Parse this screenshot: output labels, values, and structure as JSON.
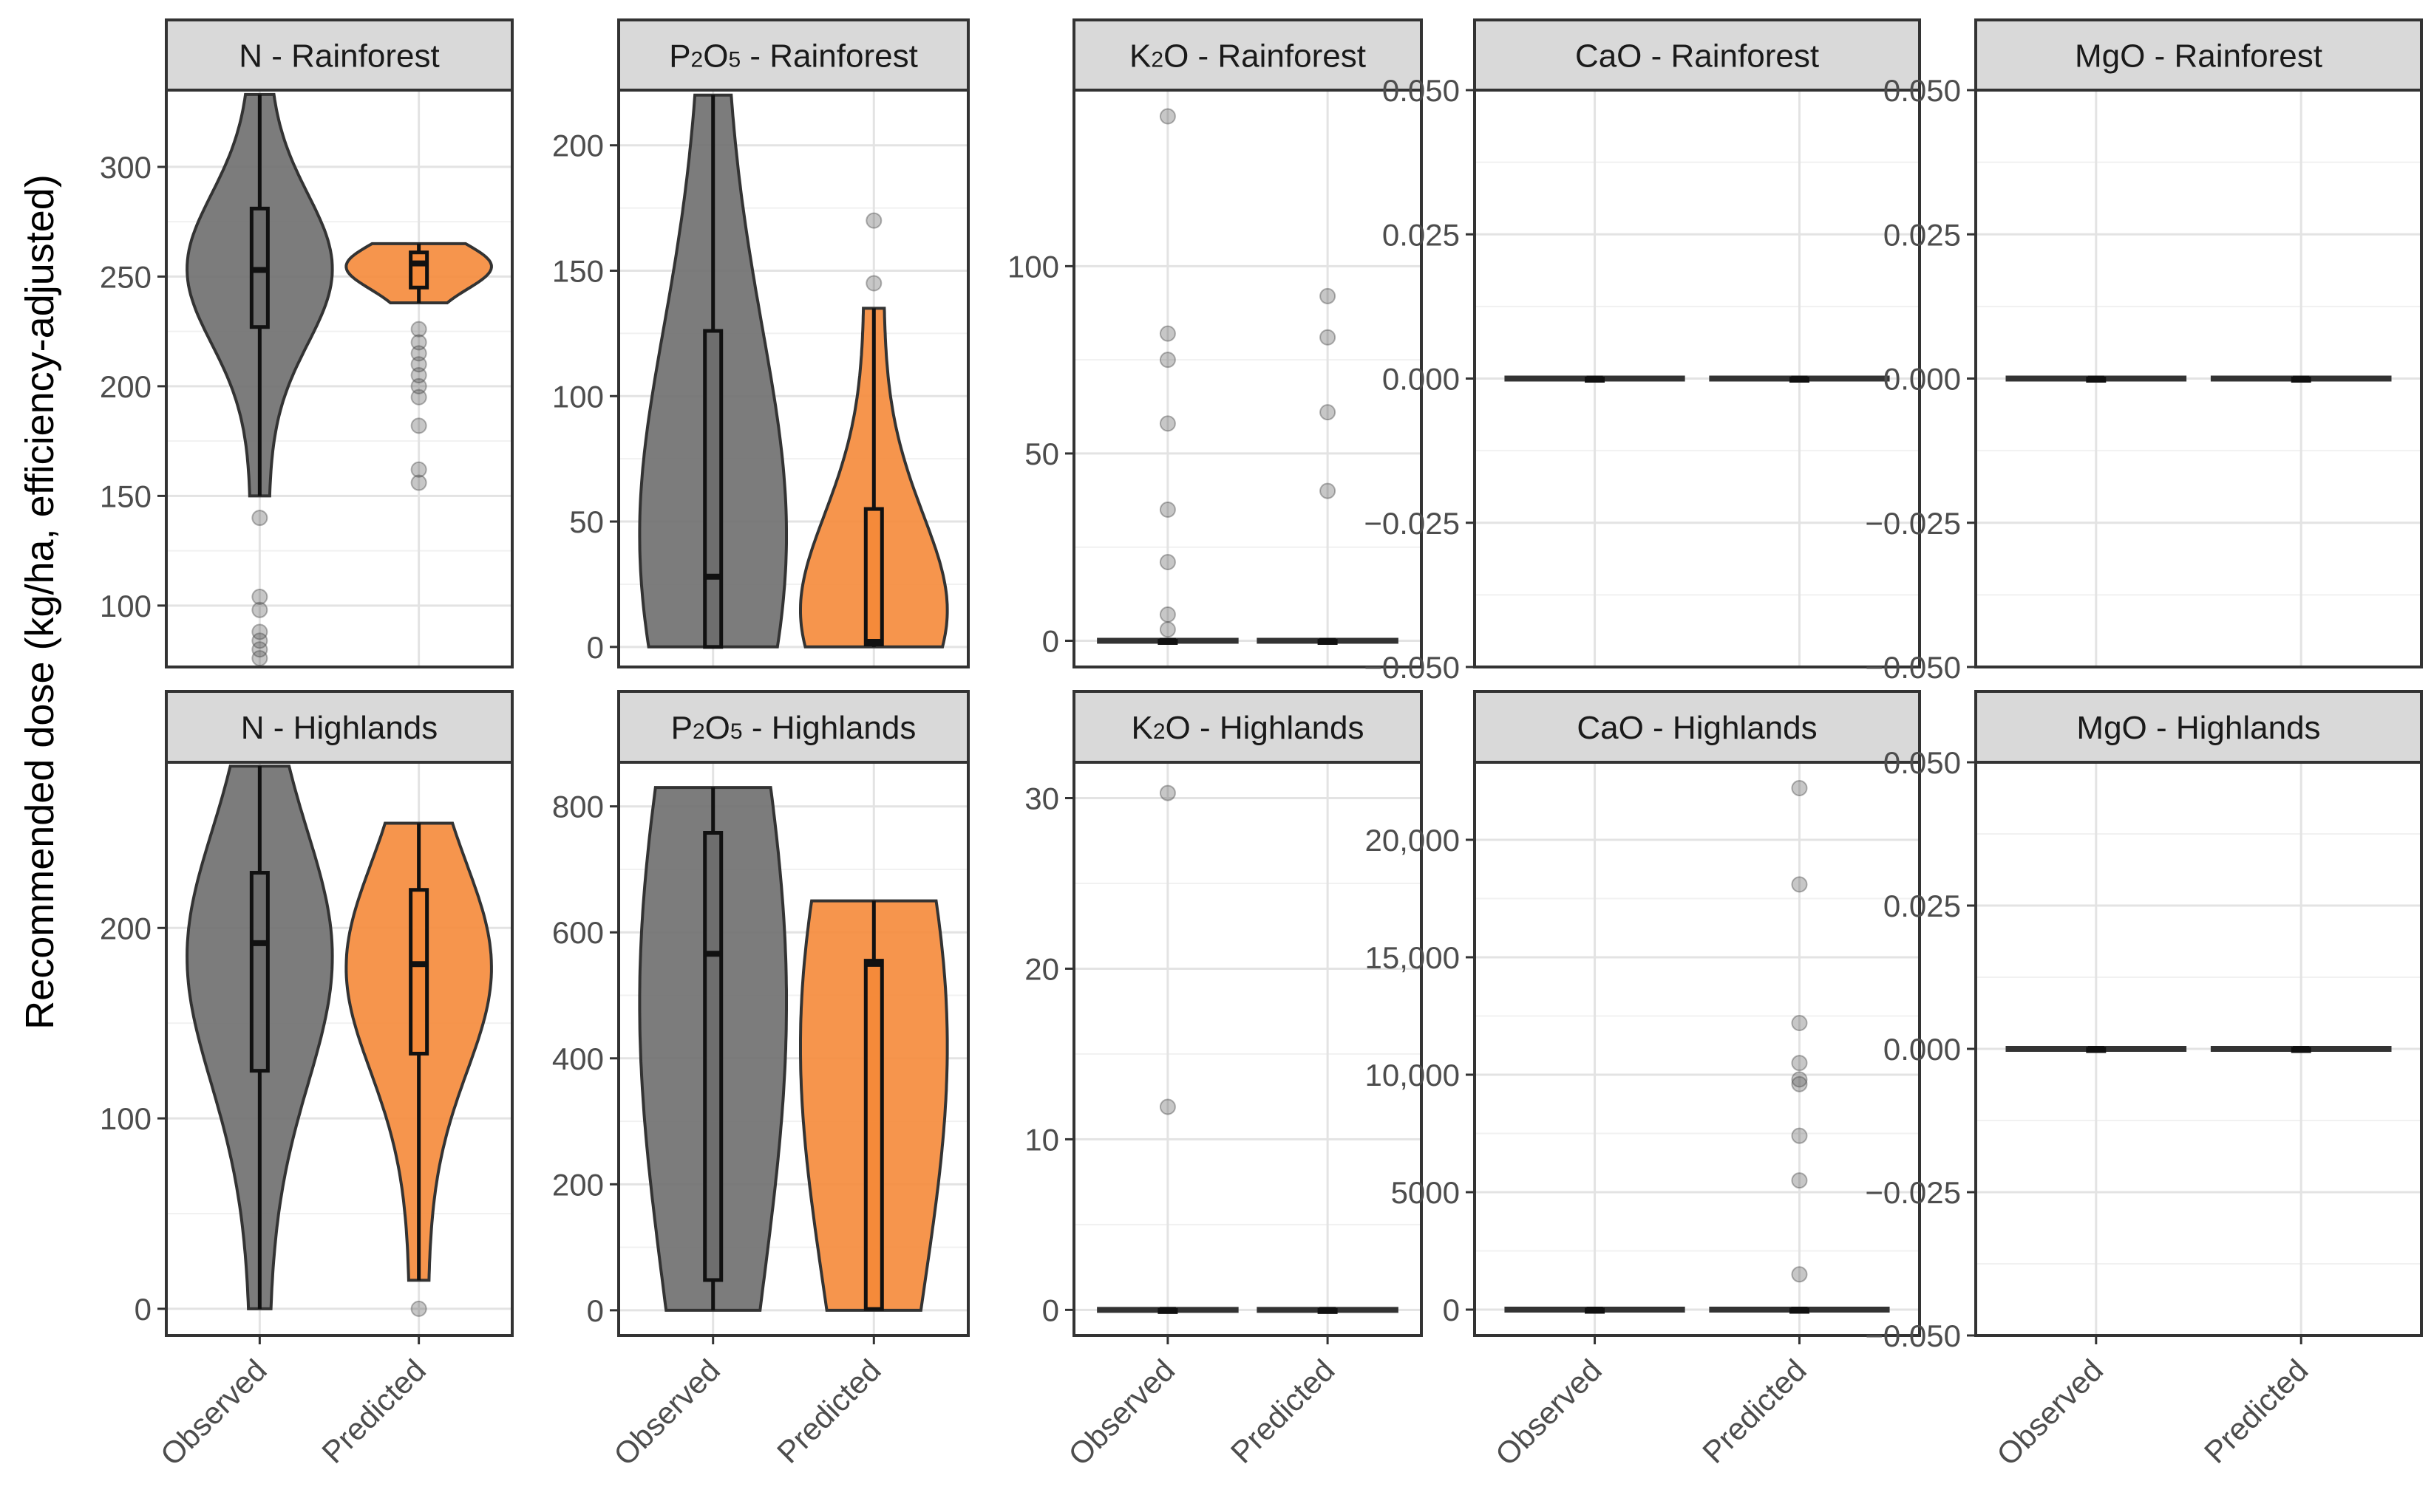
{
  "figure": {
    "ylabel": "Recommended dose (kg/ha, efficiency-adjusted)",
    "colors": {
      "observed": "#6e6e6e",
      "predicted": "#f58a3a"
    }
  },
  "chart_data": [
    {
      "type": "violin",
      "panel": "N - Rainforest",
      "strip": {
        "main": "N - Rainforest"
      },
      "categories": [
        "Observed",
        "Predicted"
      ],
      "ylim": [
        72,
        335
      ],
      "yticks": [
        100,
        150,
        200,
        250,
        300
      ],
      "series": [
        {
          "q1": 227,
          "median": 253,
          "q3": 281,
          "whisker_low": 150,
          "whisker_high": 333,
          "outliers": [
            140,
            104,
            98,
            88,
            84,
            80,
            76
          ]
        },
        {
          "q1": 245,
          "median": 256,
          "q3": 261,
          "whisker_low": 238,
          "whisker_high": 265,
          "outliers": [
            226,
            220,
            215,
            210,
            205,
            200,
            195,
            182,
            162,
            156
          ]
        }
      ]
    },
    {
      "type": "violin",
      "panel": "P2O5 - Rainforest",
      "strip": {
        "a": "P",
        "sub1": "2",
        "b": "O",
        "sub2": "5",
        "c": " - Rainforest"
      },
      "categories": [
        "Observed",
        "Predicted"
      ],
      "ylim": [
        -8,
        222
      ],
      "yticks": [
        0,
        50,
        100,
        150,
        200
      ],
      "series": [
        {
          "q1": 0,
          "median": 28,
          "q3": 126,
          "whisker_low": 0,
          "whisker_high": 220,
          "outliers": []
        },
        {
          "q1": 1,
          "median": 2,
          "q3": 55,
          "whisker_low": 0,
          "whisker_high": 135,
          "outliers": [
            170,
            145
          ]
        }
      ]
    },
    {
      "type": "violin",
      "panel": "K2O - Rainforest",
      "strip": {
        "a": "K",
        "sub1": "2",
        "b": "O - Rainforest"
      },
      "categories": [
        "Observed",
        "Predicted"
      ],
      "ylim": [
        -7,
        147
      ],
      "yticks": [
        0,
        50,
        100
      ],
      "series": [
        {
          "q1": 0,
          "median": 0,
          "q3": 0,
          "whisker_low": 0,
          "whisker_high": 0,
          "outliers": [
            140,
            82,
            75,
            58,
            35,
            21,
            7,
            3
          ]
        },
        {
          "q1": 0,
          "median": 0,
          "q3": 0,
          "whisker_low": 0,
          "whisker_high": 0,
          "outliers": [
            92,
            81,
            61,
            40
          ]
        }
      ]
    },
    {
      "type": "violin",
      "panel": "CaO - Rainforest",
      "strip": {
        "main": "CaO - Rainforest"
      },
      "categories": [
        "Observed",
        "Predicted"
      ],
      "ylim": [
        -0.05,
        0.05
      ],
      "yticks": [
        -0.05,
        -0.025,
        0,
        0.025,
        0.05
      ],
      "yticklabels": [
        "−0.050",
        "−0.025",
        "0.000",
        "0.025",
        "0.050"
      ],
      "series": [
        {
          "q1": 0,
          "median": 0,
          "q3": 0,
          "whisker_low": 0,
          "whisker_high": 0,
          "outliers": []
        },
        {
          "q1": 0,
          "median": 0,
          "q3": 0,
          "whisker_low": 0,
          "whisker_high": 0,
          "outliers": []
        }
      ]
    },
    {
      "type": "violin",
      "panel": "MgO - Rainforest",
      "strip": {
        "main": "MgO - Rainforest"
      },
      "categories": [
        "Observed",
        "Predicted"
      ],
      "ylim": [
        -0.05,
        0.05
      ],
      "yticks": [
        -0.05,
        -0.025,
        0,
        0.025,
        0.05
      ],
      "yticklabels": [
        "−0.050",
        "−0.025",
        "0.000",
        "0.025",
        "0.050"
      ],
      "series": [
        {
          "q1": 0,
          "median": 0,
          "q3": 0,
          "whisker_low": 0,
          "whisker_high": 0,
          "outliers": []
        },
        {
          "q1": 0,
          "median": 0,
          "q3": 0,
          "whisker_low": 0,
          "whisker_high": 0,
          "outliers": []
        }
      ]
    },
    {
      "type": "violin",
      "panel": "N - Highlands",
      "strip": {
        "main": "N - Highlands"
      },
      "categories": [
        "Observed",
        "Predicted"
      ],
      "ylim": [
        -14,
        287
      ],
      "yticks": [
        0,
        100,
        200
      ],
      "series": [
        {
          "q1": 125,
          "median": 192,
          "q3": 229,
          "whisker_low": 0,
          "whisker_high": 285,
          "outliers": []
        },
        {
          "q1": 134,
          "median": 181,
          "q3": 220,
          "whisker_low": 15,
          "whisker_high": 255,
          "outliers": [
            0
          ]
        }
      ]
    },
    {
      "type": "violin",
      "panel": "P2O5 - Highlands",
      "strip": {
        "a": "P",
        "sub1": "2",
        "b": "O",
        "sub2": "5",
        "c": " -  Highlands"
      },
      "categories": [
        "Observed",
        "Predicted"
      ],
      "ylim": [
        -40,
        870
      ],
      "yticks": [
        0,
        200,
        400,
        600,
        800
      ],
      "series": [
        {
          "q1": 48,
          "median": 566,
          "q3": 758,
          "whisker_low": 0,
          "whisker_high": 830,
          "outliers": []
        },
        {
          "q1": 2,
          "median": 550,
          "q3": 555,
          "whisker_low": 0,
          "whisker_high": 650,
          "outliers": []
        }
      ]
    },
    {
      "type": "violin",
      "panel": "K2O - Highlands",
      "strip": {
        "a": "K",
        "sub1": "2",
        "b": "O  - Highlands"
      },
      "categories": [
        "Observed",
        "Predicted"
      ],
      "ylim": [
        -1.5,
        32.1
      ],
      "yticks": [
        0,
        10,
        20,
        30
      ],
      "series": [
        {
          "q1": 0,
          "median": 0,
          "q3": 0,
          "whisker_low": 0,
          "whisker_high": 0,
          "outliers": [
            30.3,
            11.9
          ]
        },
        {
          "q1": 0,
          "median": 0,
          "q3": 0,
          "whisker_low": 0,
          "whisker_high": 0,
          "outliers": []
        }
      ]
    },
    {
      "type": "violin",
      "panel": "CaO - Highlands",
      "strip": {
        "main": "CaO - Highlands"
      },
      "categories": [
        "Observed",
        "Predicted"
      ],
      "ylim": [
        -1100,
        23300
      ],
      "yticks": [
        0,
        5000,
        10000,
        15000,
        20000
      ],
      "yticklabels": [
        "0",
        "5000",
        "10,000",
        "15,000",
        "20,000"
      ],
      "series": [
        {
          "q1": 0,
          "median": 0,
          "q3": 0,
          "whisker_low": 0,
          "whisker_high": 0,
          "outliers": []
        },
        {
          "q1": 0,
          "median": 0,
          "q3": 0,
          "whisker_low": 0,
          "whisker_high": 0,
          "outliers": [
            22200,
            18100,
            12200,
            10500,
            9800,
            9600,
            7400,
            5500,
            1500
          ]
        }
      ]
    },
    {
      "type": "violin",
      "panel": "MgO - Highlands",
      "strip": {
        "main": "MgO - Highlands"
      },
      "categories": [
        "Observed",
        "Predicted"
      ],
      "ylim": [
        -0.05,
        0.05
      ],
      "yticks": [
        -0.05,
        -0.025,
        0,
        0.025,
        0.05
      ],
      "yticklabels": [
        "−0.050",
        "−0.025",
        "0.000",
        "0.025",
        "0.050"
      ],
      "series": [
        {
          "q1": 0,
          "median": 0,
          "q3": 0,
          "whisker_low": 0,
          "whisker_high": 0,
          "outliers": []
        },
        {
          "q1": 0,
          "median": 0,
          "q3": 0,
          "whisker_low": 0,
          "whisker_high": 0,
          "outliers": []
        }
      ]
    }
  ]
}
